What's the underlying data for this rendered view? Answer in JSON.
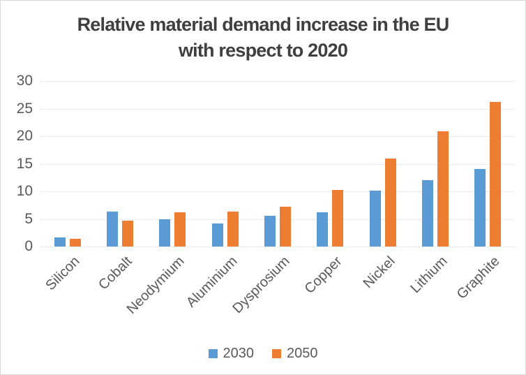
{
  "chart": {
    "title_line1": "Relative material demand increase in the EU",
    "title_line2": "with respect to 2020"
  },
  "chart_data": {
    "type": "bar",
    "title": "Relative material demand increase in the EU with respect to 2020",
    "categories": [
      "Silicon",
      "Cobalt",
      "Neodymium",
      "Aluminium",
      "Dysprosium",
      "Copper",
      "Nickel",
      "Lithium",
      "Graphite"
    ],
    "series": [
      {
        "name": "2030",
        "color": "#5B9BD5",
        "values": [
          1.7,
          6.3,
          4.9,
          4.2,
          5.6,
          6.2,
          10.1,
          12.0,
          14.1
        ]
      },
      {
        "name": "2050",
        "color": "#ED7D31",
        "values": [
          1.4,
          4.7,
          6.2,
          6.3,
          7.2,
          10.3,
          16.0,
          20.9,
          26.2
        ]
      }
    ],
    "xlabel": "",
    "ylabel": "",
    "ylim": [
      0,
      30
    ],
    "yticks": [
      0,
      5,
      10,
      15,
      20,
      25,
      30
    ],
    "grid": "horizontal-dotted",
    "legend_position": "bottom",
    "colors": {
      "grid": "#d9d9d9",
      "axis_text": "#595959",
      "title_text": "#3f3f3f",
      "series_2030": "#5B9BD5",
      "series_2050": "#ED7D31"
    }
  }
}
